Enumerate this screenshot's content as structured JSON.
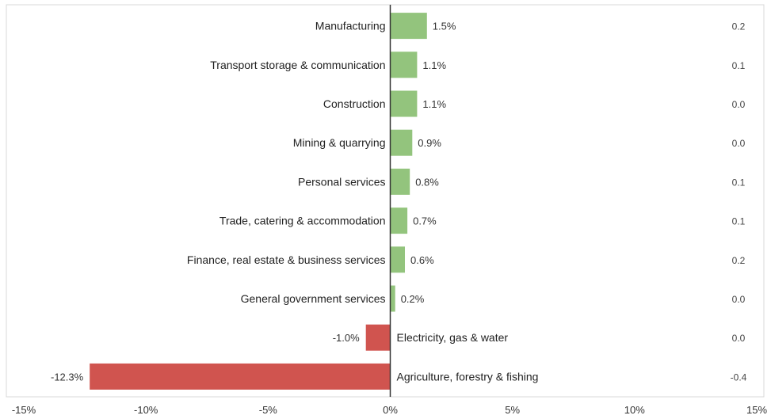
{
  "chart_data": {
    "type": "bar",
    "orientation": "horizontal",
    "categories": [
      "Manufacturing",
      "Transport storage & communication",
      "Construction",
      "Mining & quarrying",
      "Personal services",
      "Trade, catering & accommodation",
      "Finance, real estate & business services",
      "General government services",
      "Electricity, gas & water",
      "Agriculture, forestry & fishing"
    ],
    "values": [
      1.5,
      1.1,
      1.1,
      0.9,
      0.8,
      0.7,
      0.6,
      0.2,
      -1.0,
      -12.3
    ],
    "value_labels": [
      "1.5%",
      "1.1%",
      "1.1%",
      "0.9%",
      "0.8%",
      "0.7%",
      "0.6%",
      "0.2%",
      "-1.0%",
      "-12.3%"
    ],
    "right_values": [
      "0.2",
      "0.1",
      "0.0",
      "0.0",
      "0.1",
      "0.1",
      "0.2",
      "0.0",
      "0.0",
      "-0.4"
    ],
    "xlim": [
      -15,
      15
    ],
    "x_ticks": [
      -15,
      -10,
      -5,
      0,
      5,
      10,
      15
    ],
    "x_tick_labels": [
      "-15%",
      "-10%",
      "-5%",
      "0%",
      "5%",
      "10%",
      "15%"
    ],
    "colors": {
      "positive": "#93c47d",
      "negative": "#d0544f",
      "axis": "#333333",
      "frame": "#d9d9d9"
    },
    "grid": false,
    "legend": "none"
  }
}
